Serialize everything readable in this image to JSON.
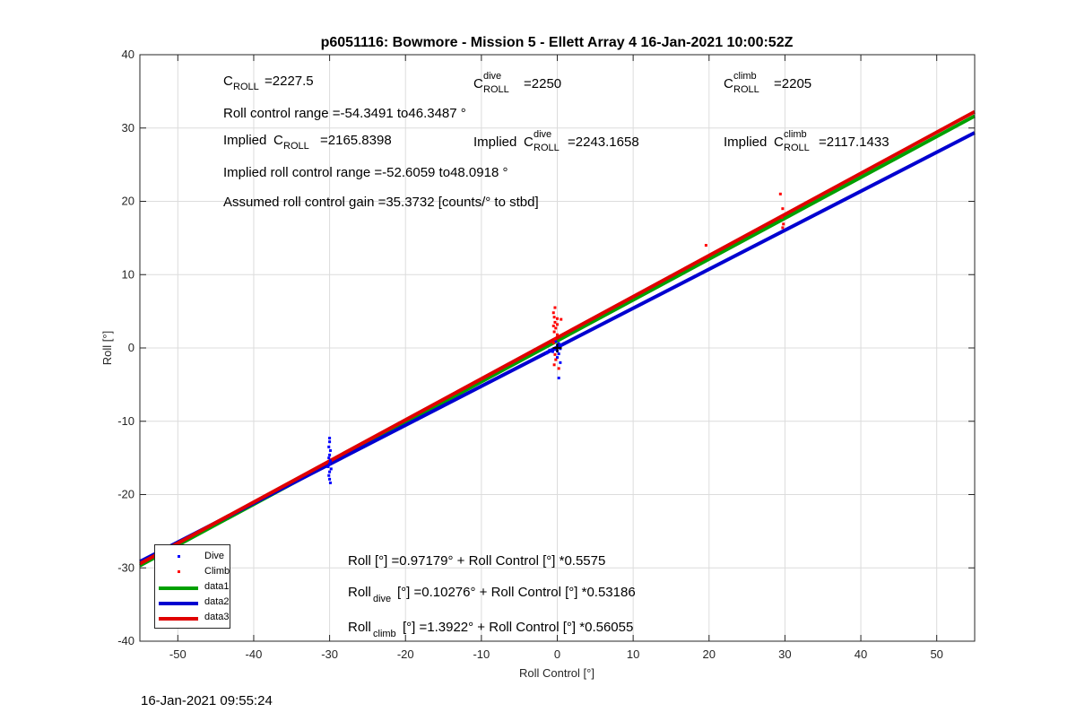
{
  "chart_data": {
    "type": "scatter",
    "title": "p6051116: Bowmore - Mission 5 - Ellett Array 4 16-Jan-2021 10:00:52Z",
    "xlabel": "Roll Control [°]",
    "ylabel": "Roll [°]",
    "xlim": [
      -55,
      55
    ],
    "ylim": [
      -40,
      40
    ],
    "xticks": [
      -50,
      -40,
      -30,
      -20,
      -10,
      0,
      10,
      20,
      30,
      40,
      50
    ],
    "yticks": [
      -40,
      -30,
      -20,
      -10,
      0,
      10,
      20,
      30,
      40
    ],
    "grid": true,
    "legend_position": "bottom-left",
    "series": [
      {
        "name": "Dive",
        "kind": "points",
        "color": "#0000ff",
        "points": [
          [
            -30.0,
            -12.3
          ],
          [
            -30.0,
            -12.8
          ],
          [
            -30.1,
            -13.5
          ],
          [
            -29.9,
            -14.0
          ],
          [
            -30.0,
            -14.6
          ],
          [
            -30.1,
            -15.0
          ],
          [
            -29.9,
            -15.4
          ],
          [
            -30.0,
            -15.8
          ],
          [
            -30.2,
            -16.2
          ],
          [
            -29.8,
            -16.5
          ],
          [
            -30.0,
            -16.9
          ],
          [
            -30.1,
            -17.4
          ],
          [
            -30.0,
            -17.9
          ],
          [
            -29.9,
            -18.4
          ],
          [
            -1.4,
            -0.7
          ],
          [
            -1.0,
            -0.3
          ],
          [
            -0.6,
            -0.5
          ],
          [
            -0.3,
            -0.2
          ],
          [
            0.0,
            0.3
          ],
          [
            0.2,
            0.6
          ],
          [
            0.4,
            -0.1
          ],
          [
            0.2,
            -0.8
          ],
          [
            0.0,
            -1.3
          ],
          [
            0.4,
            -2.0
          ],
          [
            0.2,
            -4.1
          ],
          [
            -0.2,
            0.9
          ],
          [
            0.5,
            0.4
          ],
          [
            0.0,
            -0.4
          ]
        ]
      },
      {
        "name": "Climb",
        "kind": "points",
        "color": "#ff0000",
        "points": [
          [
            -0.3,
            5.5
          ],
          [
            -0.5,
            4.8
          ],
          [
            -0.4,
            4.2
          ],
          [
            0.0,
            4.0
          ],
          [
            -0.3,
            3.5
          ],
          [
            -0.5,
            3.0
          ],
          [
            -0.2,
            2.7
          ],
          [
            -0.4,
            2.2
          ],
          [
            0.0,
            1.8
          ],
          [
            -0.3,
            1.2
          ],
          [
            -0.5,
            0.7
          ],
          [
            -0.3,
            -0.9
          ],
          [
            -0.2,
            -1.6
          ],
          [
            -0.4,
            -2.3
          ],
          [
            0.2,
            -2.8
          ],
          [
            0.5,
            3.9
          ],
          [
            0.0,
            3.2
          ],
          [
            19.6,
            14.0
          ],
          [
            29.4,
            21.0
          ],
          [
            29.7,
            19.0
          ],
          [
            29.6,
            17.8
          ],
          [
            29.8,
            16.9
          ],
          [
            29.7,
            16.4
          ]
        ]
      },
      {
        "name": "data1",
        "kind": "line",
        "color": "#00a000",
        "intercept": 0.97179,
        "slope": 0.5575
      },
      {
        "name": "data2",
        "kind": "line",
        "color": "#0000d0",
        "intercept": 0.10276,
        "slope": 0.53186
      },
      {
        "name": "data3",
        "kind": "line",
        "color": "#e00000",
        "intercept": 1.3922,
        "slope": 0.56055
      }
    ],
    "annotations": {
      "c_roll": {
        "c": "C",
        "sub": "ROLL",
        "eq": "=2227.5"
      },
      "c_roll_dive": {
        "c": "C",
        "sup": "dive",
        "sub": "ROLL",
        "eq": "=2250"
      },
      "c_roll_climb": {
        "c": "C",
        "sup": "climb",
        "sub": "ROLL",
        "eq": "=2205"
      },
      "roll_range": "Roll control range =-54.3491 to46.3487 °",
      "implied_c_roll": {
        "pre": "Implied ",
        "c": "C",
        "sub": "ROLL",
        "eq": "=2165.8398"
      },
      "implied_c_roll_dive": {
        "pre": "Implied ",
        "c": "C",
        "sup": "dive",
        "sub": "ROLL",
        "eq": "=2243.1658"
      },
      "implied_c_roll_climb": {
        "pre": "Implied ",
        "c": "C",
        "sup": "climb",
        "sub": "ROLL",
        "eq": "=2117.1433"
      },
      "implied_roll_range": "Implied roll control range =-52.6059 to48.0918 °",
      "gain": "Assumed roll control gain =35.3732 [counts/° to stbd]",
      "fit_all": "Roll [°] =0.97179° + Roll Control [°] *0.5575",
      "fit_dive": {
        "pre": "Roll",
        "sub": "dive",
        "post": " [°] =0.10276° + Roll Control [°] *0.53186"
      },
      "fit_climb": {
        "pre": "Roll",
        "sub": "climb",
        "post": " [°] =1.3922° + Roll Control [°] *0.56055"
      }
    }
  },
  "timestamp": "16-Jan-2021 09:55:24"
}
